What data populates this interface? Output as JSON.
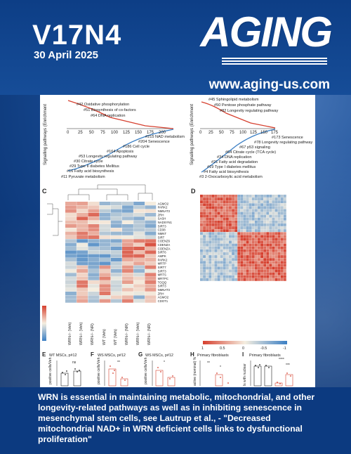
{
  "issue": {
    "volume_number": "V17N4",
    "date": "30 April 2025"
  },
  "journal": {
    "logo_text": "AGING",
    "url": "www.aging-us.com"
  },
  "figure": {
    "panelA": {
      "ylabel": "Signalling pathways (Enrichment",
      "xticks": [
        "0",
        "25",
        "50",
        "75",
        "100",
        "125",
        "150",
        "175",
        "200",
        "225"
      ],
      "top_items": [
        "#42 Oxidative phosphorylation",
        "#51 Biosynthesis of co-factors",
        "#64 DNA replication"
      ],
      "bottom_items": [
        "#215 NAD metabolism",
        "#204 Senescence",
        "#186 Cell cycle",
        "#164 Apoptosis",
        "#53 Longevity regulating pathway",
        "#30 Citrate cycle",
        "#29 Type II diabetes Mellitus",
        "#16 Fatty acid biosynthesis",
        "#11 Pyruvate metabolism"
      ]
    },
    "panelB": {
      "ylabel": "Signalling pathways (Enrichment",
      "xticks": [
        "0",
        "25",
        "50",
        "75",
        "100",
        "125",
        "150",
        "175"
      ],
      "top_items": [
        "#45 Sphingolipid metabolism",
        "#50 Pentose phosphate pathway",
        "#82 Longevity regulating pathway"
      ],
      "bottom_items": [
        "#173 Senescence",
        "#78 Longevity regulating pathway",
        "#67 p53 signaling",
        "#64 Citrate cycle (TCA cycle)",
        "#34 DNA replication",
        "#21 Fatty acid degradation",
        "#19 Type I diabetes mellitus",
        "#4 Fatty acid biosynthesis",
        "#3 2-Oxocarboxylic acid metabolism"
      ]
    },
    "panelC": {
      "letter": "C",
      "genes": [
        "AGMO2",
        "PARK2",
        "NMNAT3",
        "ZRH",
        "SASH",
        "NADSYN1",
        "SIRT3",
        "CD38",
        "NMNT",
        "SIRT",
        "COENZ6",
        "CDENZA",
        "COENZA",
        "SIRT6",
        "AMPK",
        "PARK2",
        "MRTP",
        "SIRT7",
        "SIRT3",
        "MRTS",
        "MRTPC",
        "TOQQ",
        "SIRT3",
        "NMNAT3",
        "ZRH",
        "AGMO2",
        "CDOT1"
      ],
      "columns": [
        "WRN-/- (Veh)",
        "WRN-/- (Veh)",
        "WRN-/- (NR)",
        "WT (Veh)",
        "WT (Veh)",
        "WRN-/- (NR)",
        "WRN-/- (Veh)",
        "WRN-/- (NR)"
      ]
    },
    "panelD": {
      "letter": "D",
      "legend_ticks": [
        "1",
        "0.5",
        "0",
        "-0.5",
        "-1"
      ]
    },
    "panelE": {
      "letter": "E",
      "title": "WT MSCs, p#12",
      "sig": "ns",
      "ylabel": "positive cells/Veh"
    },
    "panelF": {
      "letter": "F",
      "title": "WS MSCs, p#12",
      "sig": "**",
      "ylabel": "positive cells/Veh"
    },
    "panelG": {
      "letter": "G",
      "title": "WS MSCs, p#12",
      "sig": "*",
      "ylabel": "positive cells/Veh"
    },
    "panelH": {
      "letter": "H",
      "title": "Primary fibroblasts",
      "sig1": "**",
      "sig2": "*",
      "ylabel": "active (nominal) %"
    },
    "panelI": {
      "letter": "I",
      "title": "Primary fibroblasts",
      "sig1": "****",
      "sig2": "***",
      "ylabel": "ls with nuclear"
    },
    "colors": {
      "red": "#d6402f",
      "blue": "#3b7fc4",
      "navy": "#0c3a80"
    }
  },
  "caption": "WRN is essential in maintaining metabolic, mitochondrial, and other longevity-related pathways as well as in inhibiting senescence in mesenchymal stem cells, see Lautrup et al., - \"Decreased mitochondrial NAD+ in WRN deficient cells links to dysfunctional proliferation\""
}
